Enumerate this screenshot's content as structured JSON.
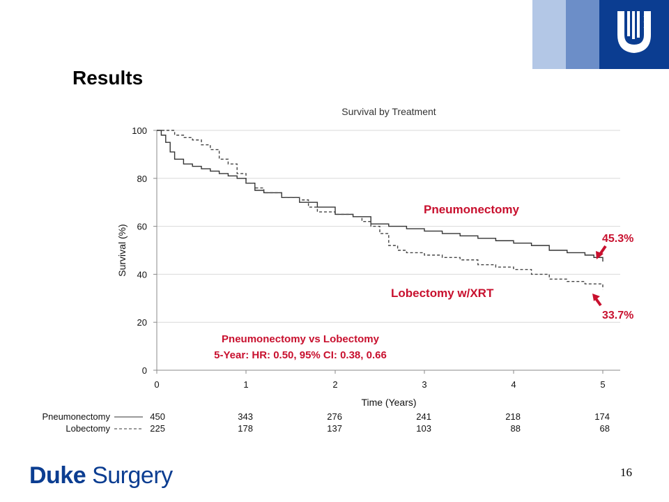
{
  "slide": {
    "title": "Results",
    "page_number": "16",
    "footer_brand": [
      "Duke",
      "Surgery"
    ],
    "colors": {
      "band_light": "#b3c7e6",
      "band_mid": "#6c8ec8",
      "band_dark": "#0b3d91",
      "brand": "#0b3d91",
      "accent_red": "#c8102e"
    },
    "logo": {
      "icon": "duke-shield-logo-icon"
    }
  },
  "chart_data": {
    "type": "line",
    "title": "Survival by Treatment",
    "xlabel": "Time (Years)",
    "ylabel": "Survival (%)",
    "xlim": [
      0,
      5
    ],
    "ylim": [
      0,
      100
    ],
    "xticks": [
      0,
      1,
      2,
      3,
      4,
      5
    ],
    "yticks": [
      0,
      20,
      40,
      60,
      80,
      100
    ],
    "grid": "horizontal",
    "series": [
      {
        "name": "Pneumonectomy",
        "style": "solid",
        "color": "#333333",
        "x": [
          0,
          0.05,
          0.1,
          0.15,
          0.2,
          0.3,
          0.4,
          0.5,
          0.6,
          0.7,
          0.8,
          0.9,
          1.0,
          1.1,
          1.2,
          1.4,
          1.6,
          1.8,
          2.0,
          2.2,
          2.4,
          2.6,
          2.8,
          3.0,
          3.2,
          3.4,
          3.6,
          3.8,
          4.0,
          4.2,
          4.4,
          4.6,
          4.8,
          4.9,
          5.0
        ],
        "values": [
          100,
          98,
          95,
          91,
          88,
          86,
          85,
          84,
          83,
          82,
          81,
          80,
          78,
          75,
          74,
          72,
          70,
          68,
          65,
          64,
          61,
          60,
          59,
          58,
          57,
          56,
          55,
          54,
          53,
          52,
          50,
          49,
          48,
          47,
          45.3
        ]
      },
      {
        "name": "Lobectomy",
        "style": "dashed",
        "color": "#444444",
        "x": [
          0,
          0.1,
          0.2,
          0.3,
          0.4,
          0.5,
          0.6,
          0.7,
          0.8,
          0.9,
          1.0,
          1.1,
          1.2,
          1.4,
          1.6,
          1.7,
          1.8,
          2.0,
          2.2,
          2.3,
          2.4,
          2.5,
          2.6,
          2.7,
          2.8,
          3.0,
          3.2,
          3.4,
          3.6,
          3.8,
          4.0,
          4.2,
          4.4,
          4.6,
          4.8,
          5.0
        ],
        "values": [
          100,
          100,
          98,
          97,
          96,
          94,
          92,
          88,
          86,
          82,
          78,
          76,
          74,
          72,
          71,
          68,
          66,
          65,
          64,
          62,
          60,
          57,
          52,
          50,
          49,
          48,
          47,
          46,
          44,
          43,
          42,
          40,
          38,
          37,
          36,
          33.7
        ]
      }
    ],
    "annotations": {
      "pneumonectomy_label": "Pneumonectomy",
      "lobectomy_label": "Lobectomy w/XRT",
      "pneumonectomy_final": "45.3%",
      "lobectomy_final": "33.7%",
      "hr_line1": "Pneumonectomy vs Lobectomy",
      "hr_line2": "5-Year: HR: 0.50, 95% CI: 0.38, 0.66"
    },
    "risk_table": {
      "times": [
        0,
        1,
        2,
        3,
        4,
        5
      ],
      "rows": [
        {
          "label": "Pneumonectomy",
          "style": "solid",
          "counts": [
            450,
            343,
            276,
            241,
            218,
            174
          ]
        },
        {
          "label": "Lobectomy",
          "style": "dashed",
          "counts": [
            225,
            178,
            137,
            103,
            88,
            68
          ]
        }
      ]
    }
  }
}
